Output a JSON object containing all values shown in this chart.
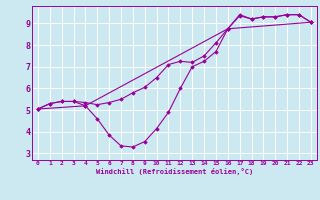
{
  "xlabel": "Windchill (Refroidissement éolien,°C)",
  "bg_color": "#cce8f0",
  "line_color": "#990099",
  "grid_color": "#ffffff",
  "xlim": [
    -0.5,
    23.5
  ],
  "ylim": [
    2.7,
    9.8
  ],
  "xticks": [
    0,
    1,
    2,
    3,
    4,
    5,
    6,
    7,
    8,
    9,
    10,
    11,
    12,
    13,
    14,
    15,
    16,
    17,
    18,
    19,
    20,
    21,
    22,
    23
  ],
  "yticks": [
    3,
    4,
    5,
    6,
    7,
    8,
    9
  ],
  "line1_x": [
    0,
    1,
    2,
    3,
    4,
    5,
    6,
    7,
    8,
    9,
    10,
    11,
    12,
    13,
    14,
    15,
    16,
    17,
    18,
    19,
    20,
    21,
    22,
    23
  ],
  "line1_y": [
    5.05,
    5.3,
    5.4,
    5.4,
    5.35,
    5.25,
    5.35,
    5.5,
    5.8,
    6.05,
    6.5,
    7.1,
    7.25,
    7.2,
    7.5,
    8.1,
    8.75,
    9.35,
    9.2,
    9.3,
    9.3,
    9.4,
    9.4,
    9.05
  ],
  "line2_x": [
    0,
    1,
    2,
    3,
    4,
    5,
    6,
    7,
    8,
    9,
    10,
    11,
    12,
    13,
    14,
    15,
    16,
    17,
    18,
    19,
    20,
    21,
    22,
    23
  ],
  "line2_y": [
    5.05,
    5.3,
    5.4,
    5.4,
    5.2,
    4.6,
    3.85,
    3.35,
    3.3,
    3.55,
    4.15,
    4.9,
    6.0,
    7.0,
    7.25,
    7.7,
    8.75,
    9.4,
    9.2,
    9.3,
    9.3,
    9.4,
    9.4,
    9.05
  ],
  "line3_x": [
    0,
    4,
    16,
    23
  ],
  "line3_y": [
    5.05,
    5.2,
    8.75,
    9.05
  ]
}
